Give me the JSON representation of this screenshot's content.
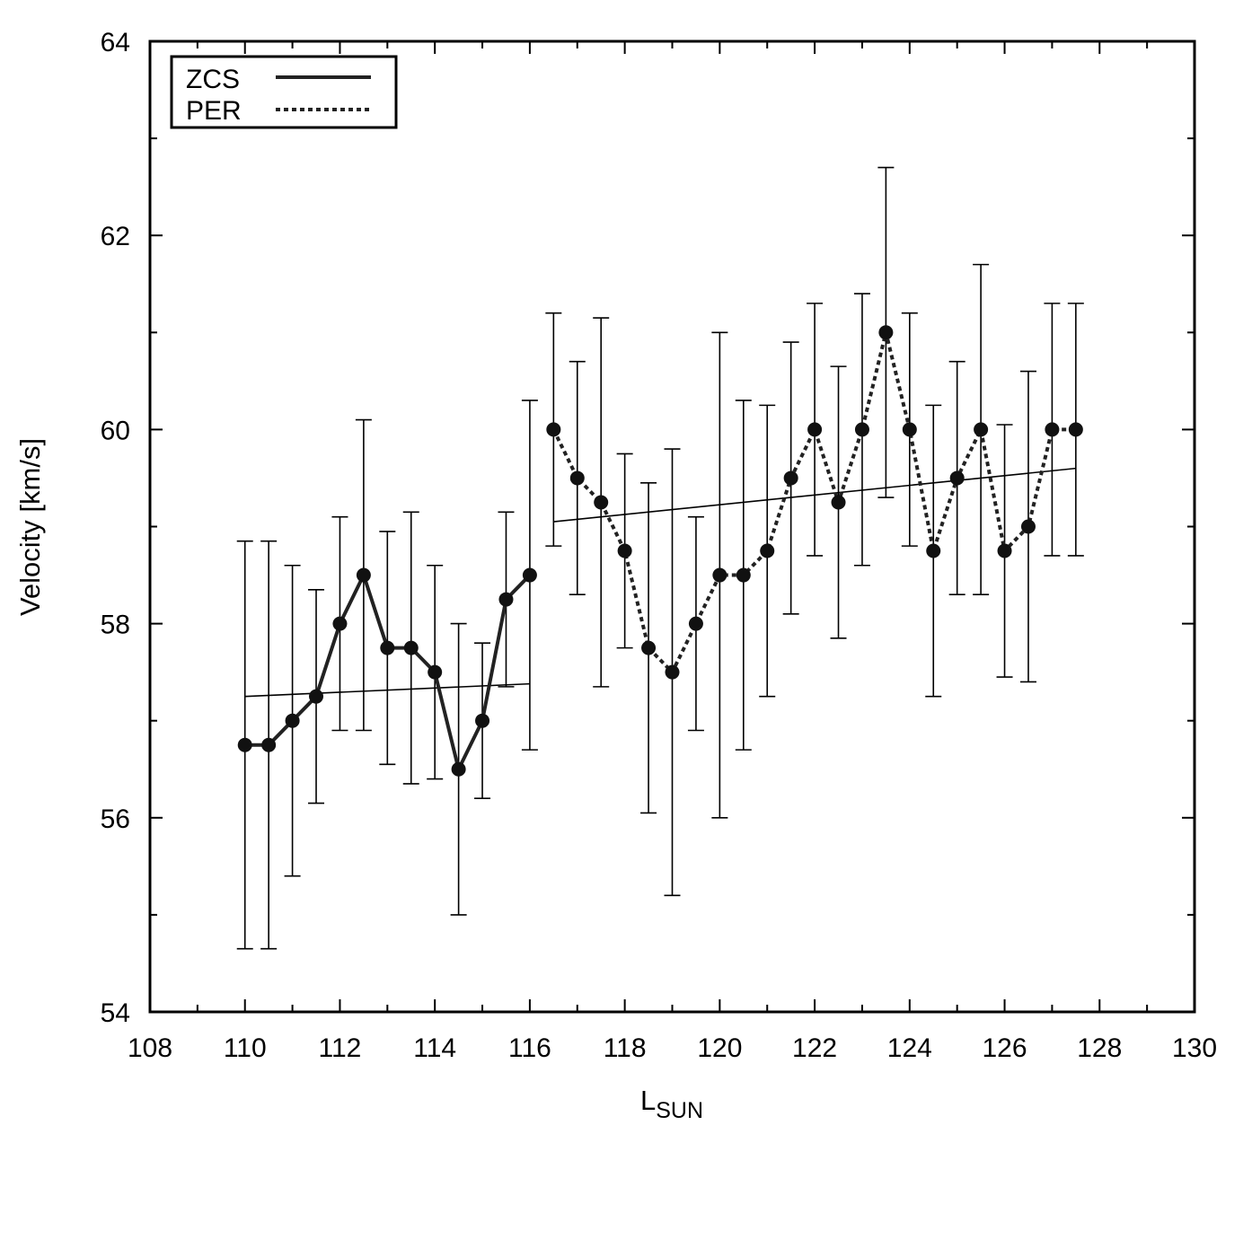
{
  "chart_data": {
    "type": "line",
    "xlabel": "L",
    "xlabel_sub": "SUN",
    "ylabel": "Velocity [km/s]",
    "xlim": [
      108,
      130
    ],
    "ylim": [
      54,
      64
    ],
    "xticks": [
      108,
      110,
      112,
      114,
      116,
      118,
      120,
      122,
      124,
      126,
      128,
      130
    ],
    "yticks": [
      54,
      56,
      58,
      60,
      62,
      64
    ],
    "legend_position": "top-left",
    "series": [
      {
        "name": "ZCS",
        "style": "solid",
        "color": "#222222",
        "x": [
          110,
          110.5,
          111,
          111.5,
          112,
          112.5,
          113,
          113.5,
          114,
          114.5,
          115,
          115.5,
          116
        ],
        "y": [
          56.75,
          56.75,
          57.0,
          57.25,
          58.0,
          58.5,
          57.75,
          57.75,
          57.5,
          56.5,
          57.0,
          58.25,
          58.5
        ],
        "err_low": [
          54.65,
          54.65,
          55.4,
          56.15,
          56.9,
          56.9,
          56.55,
          56.35,
          56.4,
          55.0,
          56.2,
          57.35,
          56.7
        ],
        "err_high": [
          58.85,
          58.85,
          58.6,
          58.35,
          59.1,
          60.1,
          58.95,
          59.15,
          58.6,
          58.0,
          57.8,
          59.15,
          60.3
        ],
        "fit": {
          "x": [
            110,
            116
          ],
          "y": [
            57.25,
            57.38
          ]
        }
      },
      {
        "name": "PER",
        "style": "dotted",
        "color": "#222222",
        "x": [
          116.5,
          117,
          117.5,
          118,
          118.5,
          119,
          119.5,
          120,
          120.5,
          121,
          121.5,
          122,
          122.5,
          123,
          123.5,
          124,
          124.5,
          125,
          125.5,
          126,
          126.5,
          127,
          127.5
        ],
        "y": [
          60.0,
          59.5,
          59.25,
          58.75,
          57.75,
          57.5,
          58.0,
          58.5,
          58.5,
          58.75,
          59.5,
          60.0,
          59.25,
          60.0,
          61.0,
          60.0,
          58.75,
          59.5,
          60.0,
          58.75,
          59.0,
          60.0,
          60.0
        ],
        "err_low": [
          58.8,
          58.3,
          57.35,
          57.75,
          56.05,
          55.2,
          56.9,
          56.0,
          56.7,
          57.25,
          58.1,
          58.7,
          57.85,
          58.6,
          59.3,
          58.8,
          57.25,
          58.3,
          58.3,
          57.45,
          57.4,
          58.7,
          58.7
        ],
        "err_high": [
          61.2,
          60.7,
          61.15,
          59.75,
          59.45,
          59.8,
          59.1,
          61.0,
          60.3,
          60.25,
          60.9,
          61.3,
          60.65,
          61.4,
          62.7,
          61.2,
          60.25,
          60.7,
          61.7,
          60.05,
          60.6,
          61.3,
          61.3
        ],
        "fit": {
          "x": [
            116.5,
            127.5
          ],
          "y": [
            59.05,
            59.6
          ]
        }
      }
    ]
  }
}
